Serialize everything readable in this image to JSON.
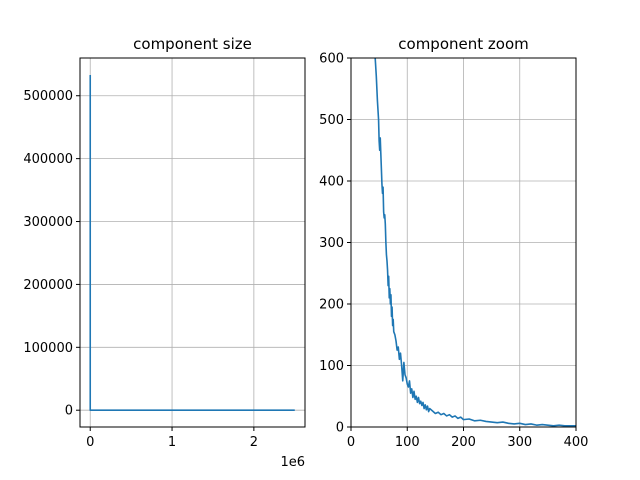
{
  "chart_data": [
    {
      "type": "line",
      "title": "component size",
      "xlabel": "",
      "ylabel": "",
      "x_offset_label": "1e6",
      "xlim": [
        -125000,
        2625000
      ],
      "ylim": [
        -26700,
        560000
      ],
      "xticks": [
        0,
        1000000,
        2000000
      ],
      "xtick_labels": [
        "0",
        "1",
        "2"
      ],
      "yticks": [
        0,
        100000,
        200000,
        300000,
        400000,
        500000
      ],
      "ytick_labels": [
        "0",
        "100000",
        "200000",
        "300000",
        "400000",
        "500000"
      ],
      "grid": true,
      "color": "#1f77b4",
      "series": [
        {
          "x": [
            1,
            2,
            3,
            5,
            10,
            100,
            1000,
            10000,
            100000,
            500000,
            1000000,
            1500000,
            2000000,
            2500000
          ],
          "y": [
            533000,
            20000,
            4000,
            900,
            120,
            8,
            2,
            1,
            1,
            1,
            1,
            1,
            1,
            1
          ]
        }
      ]
    },
    {
      "type": "line",
      "title": "component zoom",
      "xlabel": "",
      "ylabel": "",
      "xlim": [
        0,
        400
      ],
      "ylim": [
        0,
        600
      ],
      "xticks": [
        0,
        100,
        200,
        300,
        400
      ],
      "xtick_labels": [
        "0",
        "100",
        "200",
        "300",
        "400"
      ],
      "yticks": [
        0,
        100,
        200,
        300,
        400,
        500,
        600
      ],
      "ytick_labels": [
        "0",
        "100",
        "200",
        "300",
        "400",
        "500",
        "600"
      ],
      "grid": true,
      "color": "#1f77b4",
      "series": [
        {
          "x": [
            43,
            45,
            47,
            49,
            50,
            51,
            52,
            53,
            54,
            55,
            56,
            57,
            58,
            59,
            60,
            61,
            62,
            63,
            64,
            65,
            66,
            67,
            68,
            69,
            70,
            71,
            72,
            73,
            74,
            75,
            76,
            78,
            80,
            82,
            84,
            86,
            88,
            90,
            92,
            94,
            96,
            98,
            100,
            102,
            104,
            106,
            108,
            110,
            112,
            114,
            116,
            118,
            120,
            122,
            124,
            126,
            128,
            130,
            132,
            134,
            136,
            138,
            140,
            145,
            150,
            155,
            160,
            165,
            170,
            175,
            180,
            185,
            190,
            195,
            200,
            210,
            220,
            230,
            240,
            250,
            260,
            270,
            280,
            290,
            300,
            310,
            320,
            330,
            340,
            350,
            360,
            370,
            380,
            390,
            400
          ],
          "y": [
            600,
            570,
            530,
            500,
            465,
            450,
            470,
            445,
            420,
            395,
            380,
            390,
            350,
            340,
            345,
            330,
            300,
            280,
            270,
            255,
            230,
            245,
            210,
            225,
            200,
            215,
            180,
            195,
            165,
            175,
            155,
            150,
            140,
            125,
            130,
            110,
            120,
            100,
            75,
            105,
            85,
            80,
            70,
            65,
            75,
            55,
            62,
            48,
            58,
            45,
            50,
            40,
            48,
            38,
            42,
            35,
            40,
            30,
            36,
            28,
            34,
            25,
            30,
            26,
            22,
            24,
            20,
            22,
            18,
            20,
            16,
            18,
            14,
            16,
            12,
            13,
            10,
            11,
            9,
            8,
            7,
            8,
            6,
            5,
            6,
            4,
            5,
            3,
            4,
            3,
            2,
            3,
            2,
            2,
            2
          ]
        }
      ]
    }
  ]
}
